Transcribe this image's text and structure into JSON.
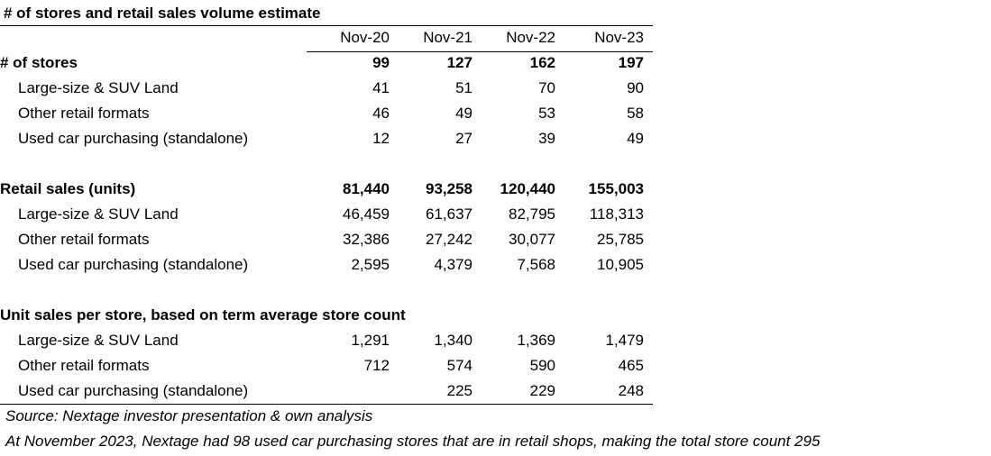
{
  "chart_data": {
    "type": "table",
    "title": "# of stores and retail sales volume estimate",
    "columns": [
      "Nov-20",
      "Nov-21",
      "Nov-22",
      "Nov-23"
    ],
    "sections": [
      {
        "heading": "# of stores",
        "totals": [
          "99",
          "127",
          "162",
          "197"
        ],
        "rows": [
          {
            "label": "Large-size & SUV Land",
            "values": [
              "41",
              "51",
              "70",
              "90"
            ]
          },
          {
            "label": "Other retail formats",
            "values": [
              "46",
              "49",
              "53",
              "58"
            ]
          },
          {
            "label": "Used car purchasing (standalone)",
            "values": [
              "12",
              "27",
              "39",
              "49"
            ]
          }
        ]
      },
      {
        "heading": "Retail sales (units)",
        "totals": [
          "81,440",
          "93,258",
          "120,440",
          "155,003"
        ],
        "rows": [
          {
            "label": "Large-size & SUV Land",
            "values": [
              "46,459",
              "61,637",
              "82,795",
              "118,313"
            ]
          },
          {
            "label": "Other retail formats",
            "values": [
              "32,386",
              "27,242",
              "30,077",
              "25,785"
            ]
          },
          {
            "label": "Used car purchasing (standalone)",
            "values": [
              "2,595",
              "4,379",
              "7,568",
              "10,905"
            ]
          }
        ]
      },
      {
        "heading": "Unit sales per store, based on term average store count",
        "totals": [
          "",
          "",
          "",
          ""
        ],
        "rows": [
          {
            "label": "Large-size & SUV Land",
            "values": [
              "1,291",
              "1,340",
              "1,369",
              "1,479"
            ]
          },
          {
            "label": "Other retail formats",
            "values": [
              "712",
              "574",
              "590",
              "465"
            ]
          },
          {
            "label": "Used car purchasing (standalone)",
            "values": [
              "",
              "225",
              "229",
              "248"
            ]
          }
        ]
      }
    ],
    "notes": [
      "Source: Nextage investor presentation & own analysis",
      "At November 2023, Nextage had 98 used car purchasing stores that are in retail shops, making the total store count 295"
    ]
  }
}
